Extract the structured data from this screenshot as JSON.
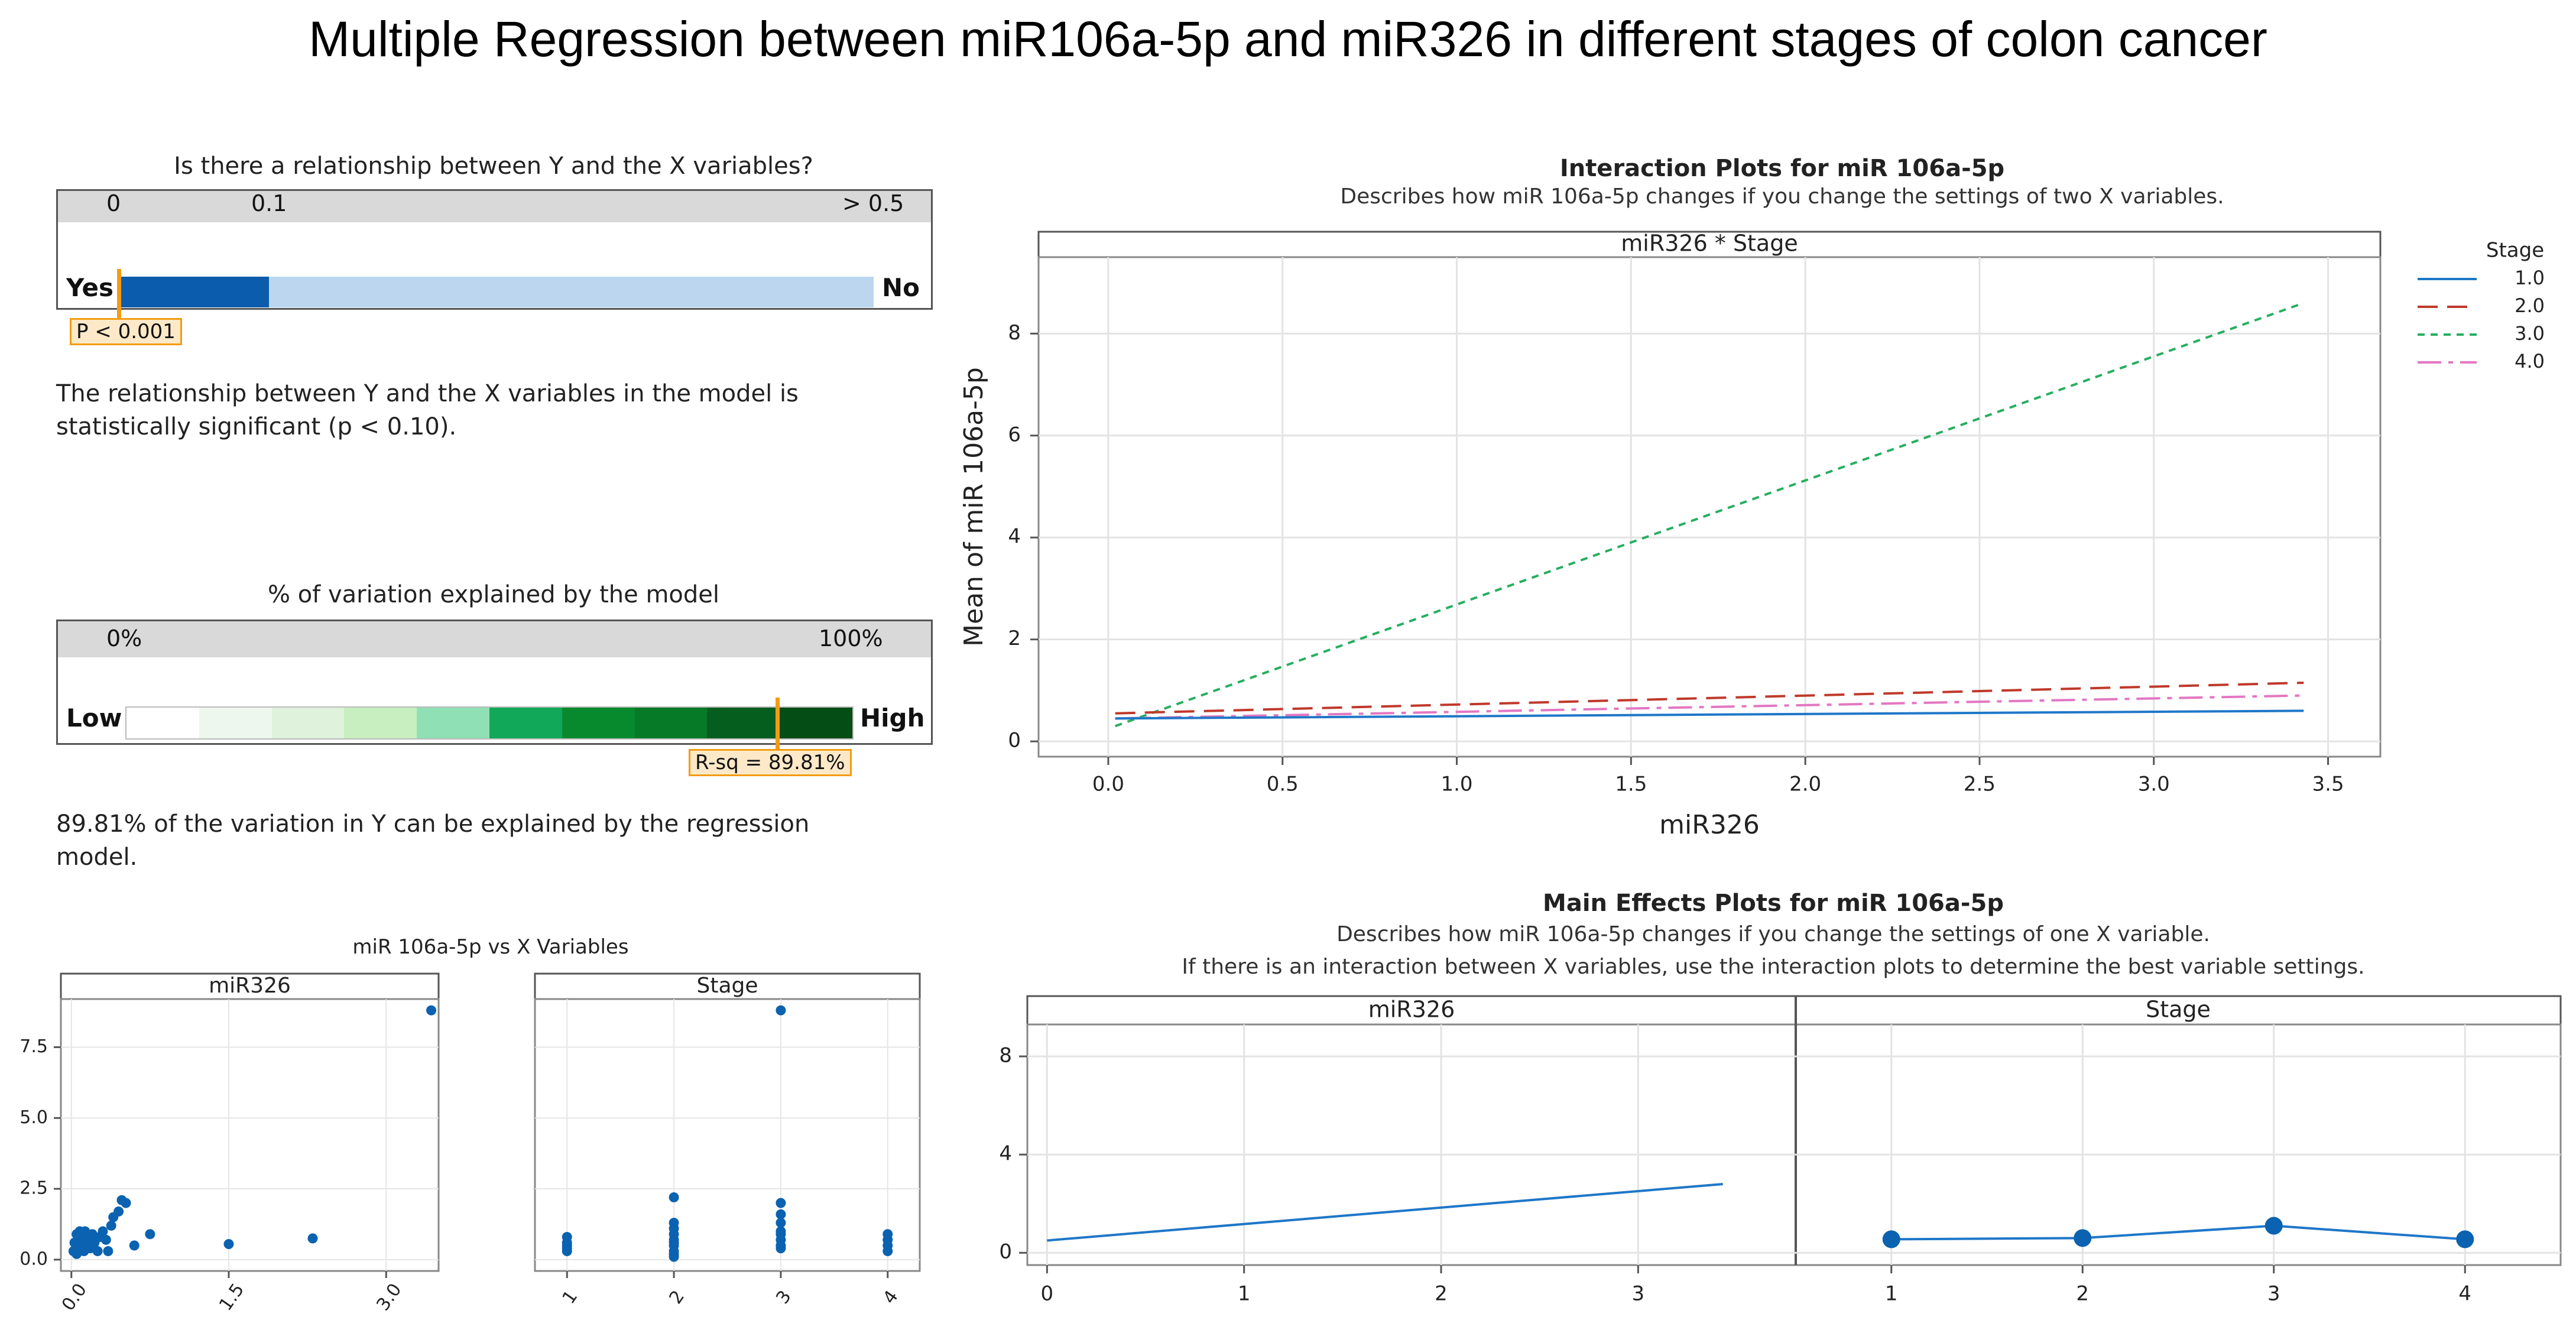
{
  "title": "Multiple Regression between miR106a-5p and miR326 in different stages of colon cancer",
  "significance": {
    "title": "Is there a relationship between Y and the X variables?",
    "scale_labels": [
      "0",
      "0.1",
      "> 0.5"
    ],
    "left_label": "Yes",
    "right_label": "No",
    "p_value": 0.001,
    "p_label": "P < 0.001",
    "description": "The relationship between Y and the X variables in the model is statistically significant (p < 0.10)."
  },
  "variation": {
    "title": "% of variation explained by the model",
    "scale_labels": [
      "0%",
      "100%"
    ],
    "left_label": "Low",
    "right_label": "High",
    "r_sq": 89.81,
    "r_sq_label": "R-sq = 89.81%",
    "description": "89.81% of the variation in Y can be explained by the regression model."
  },
  "colors": {
    "stage1": "#1f77c8",
    "stage2": "#c0392b",
    "stage3": "#27ae60",
    "stage4": "#e377c2",
    "accent_orange": "#f39c12",
    "dark_blue": "#0b5cad",
    "light_blue": "#bcd6f0",
    "point_blue": "#0b62b0"
  },
  "chart_data": [
    {
      "type": "line",
      "title": "Interaction Plots for miR 106a-5p",
      "subtitle": "Describes how miR 106a-5p changes if you change the settings of two X variables.",
      "facet_label": "miR326 * Stage",
      "xlabel": "miR326",
      "ylabel": "Mean of miR 106a-5p",
      "xlim": [
        -0.2,
        3.65
      ],
      "ylim": [
        -0.3,
        9.5
      ],
      "xticks": [
        0.0,
        0.5,
        1.0,
        1.5,
        2.0,
        2.5,
        3.0,
        3.5
      ],
      "xtick_labels": [
        "0.0",
        "0.5",
        "1.0",
        "1.5",
        "2.0",
        "2.5",
        "3.0",
        "3.5"
      ],
      "yticks": [
        0,
        2,
        4,
        6,
        8
      ],
      "ytick_labels": [
        "0",
        "2",
        "4",
        "6",
        "8"
      ],
      "legend_title": "Stage",
      "series": [
        {
          "name": "1.0",
          "x": [
            0.02,
            3.43
          ],
          "y": [
            0.45,
            0.6
          ]
        },
        {
          "name": "2.0",
          "x": [
            0.02,
            3.43
          ],
          "y": [
            0.55,
            1.15
          ]
        },
        {
          "name": "3.0",
          "x": [
            0.02,
            3.43
          ],
          "y": [
            0.3,
            8.6
          ]
        },
        {
          "name": "4.0",
          "x": [
            0.02,
            3.43
          ],
          "y": [
            0.45,
            0.9
          ]
        }
      ]
    },
    {
      "type": "scatter",
      "title": "miR 106a-5p vs X Variables",
      "facets": [
        {
          "label": "miR326",
          "xlim": [
            -0.1,
            3.5
          ],
          "ylim": [
            -0.4,
            9.2
          ],
          "xticks": [
            0.0,
            1.5,
            3.0
          ],
          "xtick_labels": [
            "0.0",
            "1.5",
            "3.0"
          ],
          "yticks": [
            0.0,
            2.5,
            5.0,
            7.5
          ],
          "ytick_labels": [
            "0.0",
            "2.5",
            "5.0",
            "7.5"
          ],
          "x": [
            0.02,
            0.03,
            0.05,
            0.05,
            0.07,
            0.08,
            0.1,
            0.1,
            0.12,
            0.13,
            0.15,
            0.16,
            0.18,
            0.2,
            0.22,
            0.25,
            0.27,
            0.3,
            0.33,
            0.35,
            0.38,
            0.4,
            0.45,
            0.48,
            0.52,
            0.6,
            0.75,
            1.5,
            2.3,
            3.43
          ],
          "y": [
            0.3,
            0.6,
            0.9,
            0.2,
            0.5,
            1.0,
            0.4,
            0.7,
            0.3,
            1.0,
            0.8,
            0.5,
            0.4,
            0.9,
            0.6,
            0.3,
            0.8,
            1.0,
            0.7,
            0.3,
            1.2,
            1.5,
            1.7,
            2.1,
            2.0,
            0.5,
            0.9,
            0.55,
            0.75,
            8.8
          ]
        },
        {
          "label": "Stage",
          "xlim": [
            0.7,
            4.3
          ],
          "ylim": [
            -0.4,
            9.2
          ],
          "xticks": [
            1,
            2,
            3,
            4
          ],
          "xtick_labels": [
            "1",
            "2",
            "3",
            "4"
          ],
          "x": [
            1,
            1,
            1,
            1,
            1,
            2,
            2,
            2,
            2,
            2,
            2,
            2,
            2,
            2,
            2,
            3,
            3,
            3,
            3,
            3,
            3,
            3,
            3,
            3,
            4,
            4,
            4,
            4
          ],
          "y": [
            0.3,
            0.5,
            0.6,
            0.8,
            0.4,
            0.1,
            0.3,
            0.5,
            0.7,
            0.9,
            1.1,
            1.3,
            0.2,
            0.6,
            2.2,
            0.4,
            0.7,
            1.0,
            1.3,
            1.6,
            2.0,
            8.8,
            0.5,
            0.9,
            0.3,
            0.5,
            0.7,
            0.9
          ]
        }
      ]
    },
    {
      "type": "line",
      "title": "Main Effects Plots for miR 106a-5p",
      "subtitle1": "Describes how miR 106a-5p changes if you change the settings of one X variable.",
      "subtitle2": "If there is an interaction between X variables, use the interaction plots to determine the best variable settings.",
      "ylim": [
        -0.5,
        9.3
      ],
      "yticks": [
        0,
        4,
        8
      ],
      "ytick_labels": [
        "0",
        "4",
        "8"
      ],
      "facets": [
        {
          "label": "miR326",
          "xlim": [
            -0.1,
            3.8
          ],
          "xticks": [
            0,
            1,
            2,
            3
          ],
          "xtick_labels": [
            "0",
            "1",
            "2",
            "3"
          ],
          "x": [
            0.0,
            3.43
          ],
          "y": [
            0.5,
            2.8
          ],
          "markers": false
        },
        {
          "label": "Stage",
          "xlim": [
            0.5,
            4.5
          ],
          "xticks": [
            1,
            2,
            3,
            4
          ],
          "xtick_labels": [
            "1",
            "2",
            "3",
            "4"
          ],
          "x": [
            1,
            2,
            3,
            4
          ],
          "y": [
            0.55,
            0.6,
            1.1,
            0.55
          ],
          "markers": true
        }
      ]
    }
  ]
}
